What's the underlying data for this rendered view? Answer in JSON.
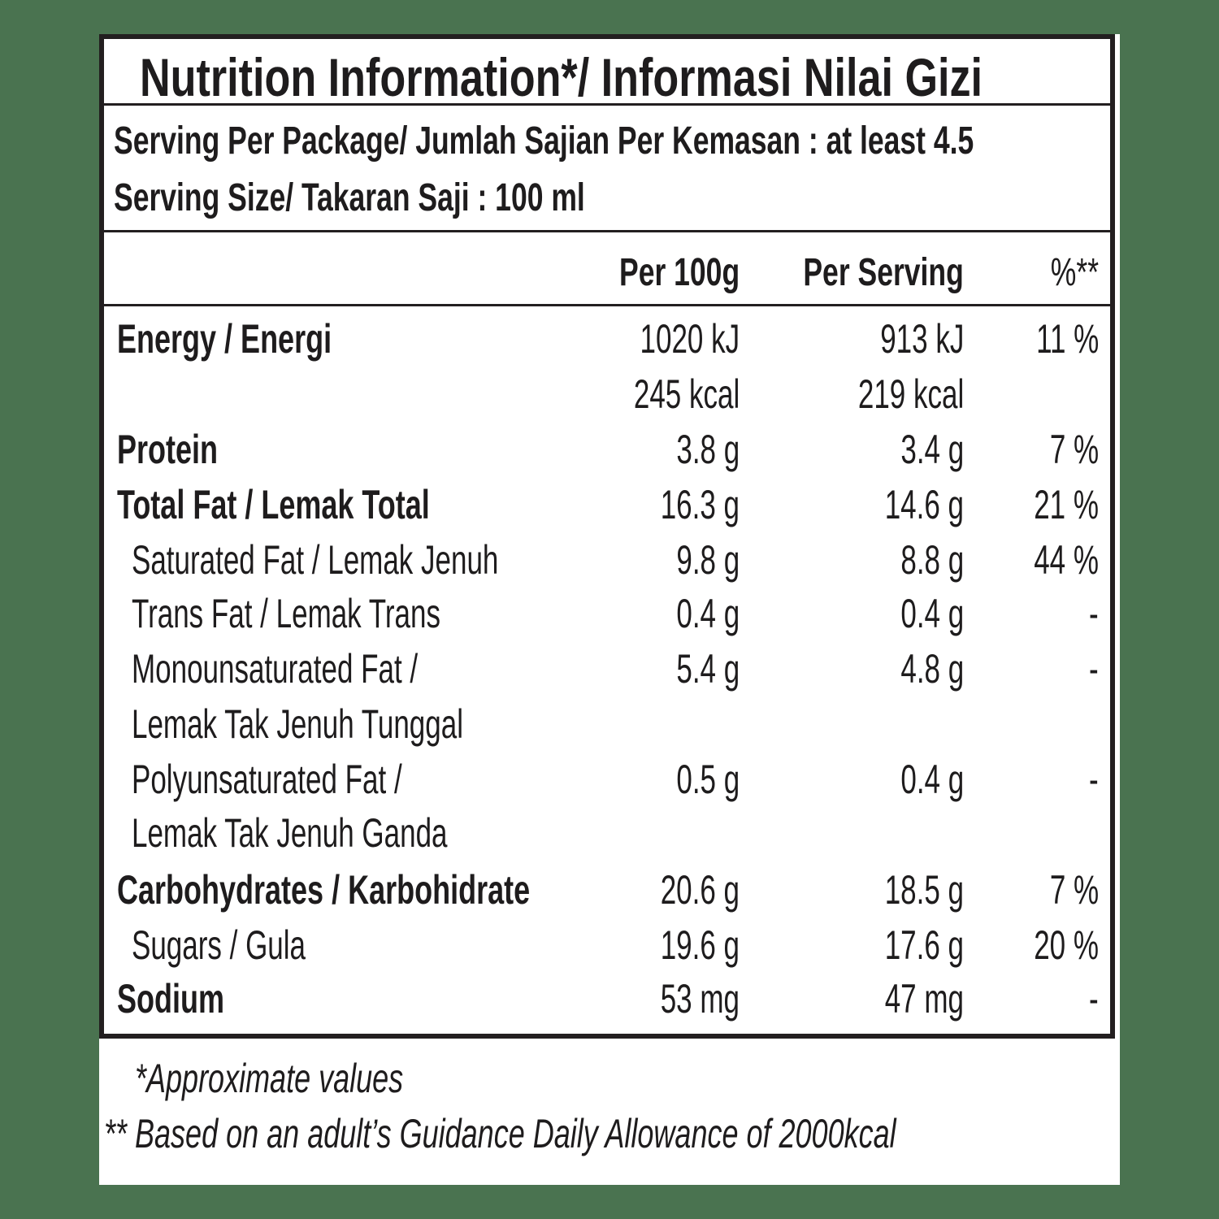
{
  "label": {
    "title": "Nutrition Information*/  Informasi Nilai Gizi",
    "serving_per_package": "Serving Per Package/ Jumlah Sajian Per Kemasan : at least 4.5",
    "serving_size": "Serving Size/ Takaran Saji : 100 ml",
    "columns": {
      "per100": "Per 100g",
      "per_serving": "Per Serving",
      "percent": "%**"
    },
    "rows": [
      {
        "label": "Energy / Energi",
        "bold": true,
        "indent": false,
        "per100": "1020 kJ",
        "per_serving": "913 kJ",
        "percent": "11 %"
      },
      {
        "label": "",
        "bold": false,
        "indent": false,
        "per100": "245 kcal",
        "per_serving": "219 kcal",
        "percent": ""
      },
      {
        "label": "Protein",
        "bold": true,
        "indent": false,
        "per100": "3.8 g",
        "per_serving": "3.4 g",
        "percent": "7 %"
      },
      {
        "label": "Total Fat / Lemak Total",
        "bold": true,
        "indent": false,
        "per100": "16.3 g",
        "per_serving": "14.6 g",
        "percent": "21 %"
      },
      {
        "label": "Saturated Fat / Lemak Jenuh",
        "bold": false,
        "indent": true,
        "per100": "9.8 g",
        "per_serving": "8.8 g",
        "percent": "44 %"
      },
      {
        "label": "Trans Fat / Lemak Trans",
        "bold": false,
        "indent": true,
        "per100": "0.4 g",
        "per_serving": "0.4 g",
        "percent": "-"
      },
      {
        "label": "Monounsaturated Fat /",
        "bold": false,
        "indent": true,
        "per100": "5.4 g",
        "per_serving": "4.8 g",
        "percent": "-"
      },
      {
        "label": "Lemak Tak Jenuh Tunggal",
        "bold": false,
        "indent": true,
        "per100": "",
        "per_serving": "",
        "percent": ""
      },
      {
        "label": "Polyunsaturated Fat /",
        "bold": false,
        "indent": true,
        "per100": "0.5 g",
        "per_serving": "0.4 g",
        "percent": "-"
      },
      {
        "label": "Lemak Tak Jenuh Ganda",
        "bold": false,
        "indent": true,
        "per100": "",
        "per_serving": "",
        "percent": ""
      },
      {
        "label": "Carbohydrates / Karbohidrate",
        "bold": true,
        "indent": false,
        "per100": "20.6 g",
        "per_serving": "18.5 g",
        "percent": "7 %"
      },
      {
        "label": "Sugars / Gula",
        "bold": false,
        "indent": true,
        "per100": "19.6 g",
        "per_serving": "17.6 g",
        "percent": "20 %"
      },
      {
        "label": "Sodium",
        "bold": true,
        "indent": false,
        "per100": "53 mg",
        "per_serving": "47 mg",
        "percent": "-"
      }
    ],
    "footnotes": [
      "*Approximate values",
      "** Based on an adult’s Guidance Daily Allowance of 2000kcal"
    ]
  },
  "colors": {
    "background": "#4a7350",
    "ink": "#231f20",
    "panel": "#ffffff"
  }
}
